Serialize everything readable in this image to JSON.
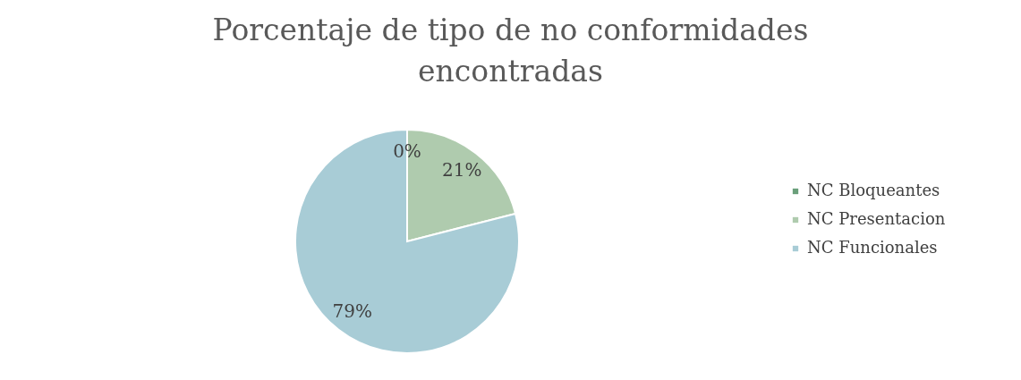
{
  "chart_data": {
    "type": "pie",
    "title": "Porcentaje de tipo de no conformidades encontradas",
    "categories": [
      "NC Bloqueantes",
      "NC Presentacion",
      "NC Funcionales"
    ],
    "values": [
      0,
      21,
      79
    ],
    "colors": [
      "#6a9f7a",
      "#afcbae",
      "#a8ccd6"
    ],
    "value_labels": [
      "0%",
      "21%",
      "79%"
    ],
    "legend": "right"
  }
}
